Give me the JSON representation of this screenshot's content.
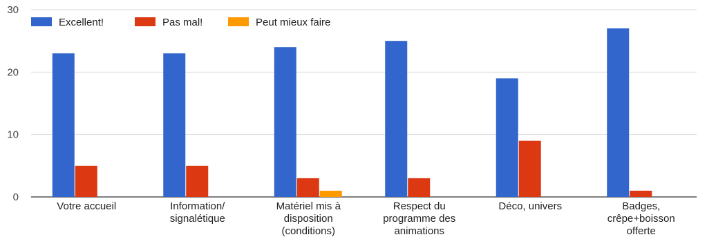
{
  "chart_data": {
    "type": "bar",
    "categories": [
      [
        "Votre accueil"
      ],
      [
        "Information/",
        "signalétique"
      ],
      [
        "Matériel mis à",
        "disposition",
        "(conditions)"
      ],
      [
        "Respect du",
        "programme des",
        "animations"
      ],
      [
        "Déco, univers"
      ],
      [
        "Badges,",
        "crêpe+boisson",
        "offerte"
      ]
    ],
    "series": [
      {
        "name": "Excellent!",
        "color": "#3366cc",
        "values": [
          23,
          23,
          24,
          25,
          19,
          27
        ]
      },
      {
        "name": "Pas mal!",
        "color": "#dc3912",
        "values": [
          5,
          5,
          3,
          3,
          9,
          1
        ]
      },
      {
        "name": "Peut mieux faire",
        "color": "#ff9900",
        "values": [
          0,
          0,
          1,
          0,
          0,
          0
        ]
      }
    ],
    "ylim": [
      0,
      30
    ],
    "yticks": [
      0,
      10,
      20,
      30
    ],
    "grid": true,
    "legend_position": "top-left"
  }
}
